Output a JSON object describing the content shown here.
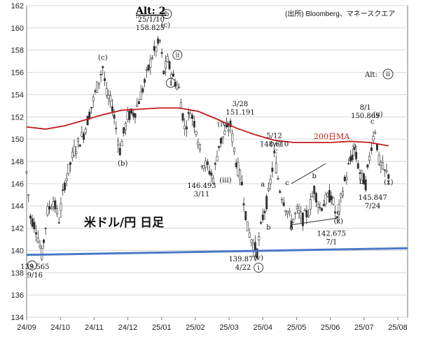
{
  "chart_data": {
    "type": "candlestick",
    "title": "米ドル/円 日足",
    "source": "(出所) Bloomberg、マネースクエア",
    "alt_top": "Alt: 2",
    "alt_right": "Alt:",
    "alt_right_circle": "ii",
    "y_ticks": [
      134,
      136,
      138,
      140,
      142,
      144,
      146,
      148,
      150,
      152,
      154,
      156,
      158,
      160,
      162
    ],
    "x_ticks": [
      "24/09",
      "24/10",
      "24/11",
      "24/12",
      "25/01",
      "25/02",
      "25/03",
      "25/04",
      "25/05",
      "25/06",
      "25/07",
      "25/08"
    ],
    "ylim": [
      134,
      162
    ],
    "grid": true,
    "price_path": [
      [
        0,
        147.0
      ],
      [
        2,
        143.0
      ],
      [
        5,
        142.0
      ],
      [
        8,
        139.6
      ],
      [
        11,
        143.5
      ],
      [
        14,
        144.5
      ],
      [
        17,
        142.8
      ],
      [
        20,
        146.0
      ],
      [
        25,
        149.0
      ],
      [
        30,
        150.5
      ],
      [
        35,
        153.5
      ],
      [
        40,
        156.5
      ],
      [
        42,
        154.0
      ],
      [
        45,
        153.0
      ],
      [
        49,
        149.0
      ],
      [
        53,
        152.0
      ],
      [
        57,
        152.5
      ],
      [
        61,
        154.5
      ],
      [
        66,
        157.5
      ],
      [
        70,
        158.8
      ],
      [
        72,
        156.0
      ],
      [
        74,
        157.0
      ],
      [
        77,
        155.5
      ],
      [
        80,
        154.5
      ],
      [
        83,
        151.0
      ],
      [
        86,
        152.5
      ],
      [
        89,
        151.0
      ],
      [
        92,
        148.0
      ],
      [
        95,
        147.5
      ],
      [
        98,
        146.5
      ],
      [
        101,
        149.5
      ],
      [
        104,
        150.5
      ],
      [
        107,
        151.2
      ],
      [
        110,
        148.0
      ],
      [
        113,
        146.0
      ],
      [
        116,
        142.0
      ],
      [
        119,
        140.5
      ],
      [
        121,
        139.9
      ],
      [
        124,
        143.0
      ],
      [
        127,
        145.0
      ],
      [
        130,
        148.5
      ],
      [
        133,
        145.5
      ],
      [
        136,
        144.0
      ],
      [
        139,
        142.5
      ],
      [
        142,
        143.5
      ],
      [
        145,
        142.8
      ],
      [
        148,
        143.5
      ],
      [
        151,
        145.5
      ],
      [
        154,
        143.8
      ],
      [
        157,
        144.5
      ],
      [
        160,
        145.0
      ],
      [
        163,
        142.7
      ],
      [
        166,
        145.5
      ],
      [
        169,
        147.5
      ],
      [
        172,
        149.0
      ],
      [
        175,
        147.0
      ],
      [
        178,
        146.0
      ],
      [
        181,
        149.5
      ],
      [
        183,
        150.9
      ],
      [
        185,
        148.0
      ],
      [
        188,
        147.0
      ],
      [
        190,
        146.8
      ]
    ],
    "ma200_path": [
      [
        0,
        151.1
      ],
      [
        10,
        150.9
      ],
      [
        20,
        151.2
      ],
      [
        30,
        151.7
      ],
      [
        40,
        152.2
      ],
      [
        50,
        152.6
      ],
      [
        60,
        152.7
      ],
      [
        70,
        152.8
      ],
      [
        80,
        152.8
      ],
      [
        90,
        152.5
      ],
      [
        100,
        151.8
      ],
      [
        110,
        151.0
      ],
      [
        120,
        150.4
      ],
      [
        130,
        149.9
      ],
      [
        140,
        149.7
      ],
      [
        150,
        149.7
      ],
      [
        160,
        149.7
      ],
      [
        170,
        149.8
      ],
      [
        180,
        149.7
      ],
      [
        190,
        149.4
      ]
    ],
    "trendline": [
      [
        0,
        139.6
      ],
      [
        200,
        140.2
      ]
    ],
    "ma_label": "200日MA",
    "annotations": [
      {
        "t": 8,
        "p": 139.6,
        "text": "139.565"
      },
      {
        "t": 8,
        "p": 139.6,
        "text": "9/16"
      },
      {
        "t": 70,
        "p": 158.8,
        "text": "'25/1/10"
      },
      {
        "t": 70,
        "p": 158.8,
        "text": "158.825"
      },
      {
        "t": 100,
        "p": 146.5,
        "text": "146.493"
      },
      {
        "t": 100,
        "p": 146.5,
        "text": "3/11"
      },
      {
        "t": 107,
        "p": 151.2,
        "text": "3/28"
      },
      {
        "t": 107,
        "p": 151.2,
        "text": "151.191"
      },
      {
        "t": 121,
        "p": 139.9,
        "text": "139.877"
      },
      {
        "t": 121,
        "p": 139.9,
        "text": "4/22"
      },
      {
        "t": 130,
        "p": 148.6,
        "text": "5/12"
      },
      {
        "t": 130,
        "p": 148.6,
        "text": "148.610"
      },
      {
        "t": 163,
        "p": 142.7,
        "text": "142.675"
      },
      {
        "t": 163,
        "p": 142.7,
        "text": "7/1"
      },
      {
        "t": 183,
        "p": 150.9,
        "text": "8/1"
      },
      {
        "t": 183,
        "p": 150.9,
        "text": "150.869"
      },
      {
        "t": 178,
        "p": 145.8,
        "text": "145.847"
      },
      {
        "t": 178,
        "p": 145.8,
        "text": "7/24"
      }
    ],
    "wave_labels": [
      {
        "t": 8,
        "p": 139.6,
        "text": "a",
        "circled": true
      },
      {
        "t": 70,
        "p": 158.8,
        "text": "b",
        "circled": true
      },
      {
        "t": 40,
        "p": 156.5,
        "text": "(c)"
      },
      {
        "t": 49,
        "p": 149.0,
        "text": "(b)"
      },
      {
        "t": 70,
        "p": 158.8,
        "text": "(c)"
      },
      {
        "t": 74,
        "p": 157.0,
        "text": "ii",
        "circled": true
      },
      {
        "t": 72,
        "p": 156.0,
        "text": "i",
        "circled": true
      },
      {
        "t": 104,
        "p": 150.5,
        "text": "(iv)"
      },
      {
        "t": 100,
        "p": 146.5,
        "text": "(iii)"
      },
      {
        "t": 121,
        "p": 139.9,
        "text": "(v)"
      },
      {
        "t": 121,
        "p": 139.9,
        "text": "i",
        "circled": true
      },
      {
        "t": 130,
        "p": 148.6,
        "text": "(w)"
      },
      {
        "t": 130,
        "p": 148.6,
        "text": "c"
      },
      {
        "t": 124,
        "p": 145.0,
        "text": "a"
      },
      {
        "t": 127,
        "p": 143.0,
        "text": "b"
      },
      {
        "t": 139,
        "p": 142.5,
        "text": "a"
      },
      {
        "t": 136,
        "p": 145.0,
        "text": "c"
      },
      {
        "t": 151,
        "p": 145.5,
        "text": "b"
      },
      {
        "t": 163,
        "p": 142.7,
        "text": "c"
      },
      {
        "t": 163,
        "p": 142.7,
        "text": "(x)"
      },
      {
        "t": 172,
        "p": 149.0,
        "text": "a"
      },
      {
        "t": 175,
        "p": 147.0,
        "text": "b"
      },
      {
        "t": 183,
        "p": 150.9,
        "text": "c"
      },
      {
        "t": 183,
        "p": 150.9,
        "text": "(y)"
      },
      {
        "t": 190,
        "p": 146.8,
        "text": "(x)"
      }
    ]
  }
}
